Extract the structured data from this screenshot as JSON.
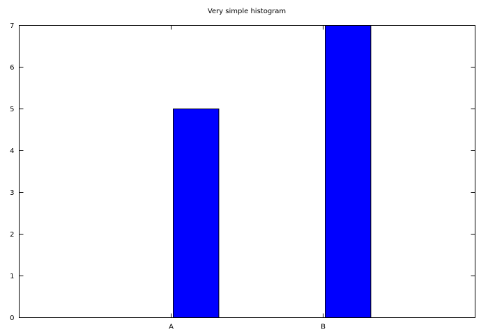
{
  "chart_data": {
    "type": "bar",
    "title": "Very simple histogram",
    "xlabel": "",
    "ylabel": "",
    "categories": [
      "A",
      "B"
    ],
    "values": [
      5,
      7
    ],
    "ylim": [
      0,
      7
    ],
    "yticks": [
      0,
      1,
      2,
      3,
      4,
      5,
      6,
      7
    ],
    "grid": false,
    "legend": "none",
    "bar_color": "#0000ff",
    "bar_edge_color": "#000000"
  }
}
